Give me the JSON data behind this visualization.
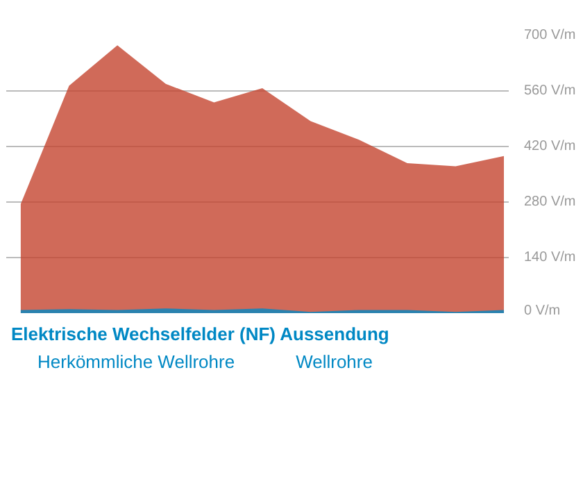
{
  "chart_data": {
    "type": "area",
    "legend_title": "Elektrische Wechselfelder (NF) Aussendung",
    "categories": [
      null,
      null,
      null,
      null,
      null,
      null,
      null,
      null,
      null,
      null,
      null
    ],
    "series": [
      {
        "name": "Herkömmliche Wellrohre",
        "color": "#c4452f",
        "values": [
          275,
          573,
          675,
          578,
          531,
          567,
          484,
          437,
          378,
          370,
          396
        ]
      },
      {
        "name": "Wellrohre",
        "color": "#0088c4",
        "values": [
          8,
          10,
          8,
          12,
          8,
          12,
          3,
          8,
          8,
          3,
          8
        ]
      }
    ],
    "ylim": [
      0,
      700
    ],
    "yticks": [
      {
        "value": 0,
        "label": "0 V/m"
      },
      {
        "value": 140,
        "label": "140 V/m"
      },
      {
        "value": 280,
        "label": "280 V/m"
      },
      {
        "value": 420,
        "label": "420 V/m"
      },
      {
        "value": 560,
        "label": "560 V/m"
      },
      {
        "value": 700,
        "label": "700 V/m"
      }
    ],
    "grid": "y",
    "legend": "bottom",
    "tick_labels": "y"
  }
}
